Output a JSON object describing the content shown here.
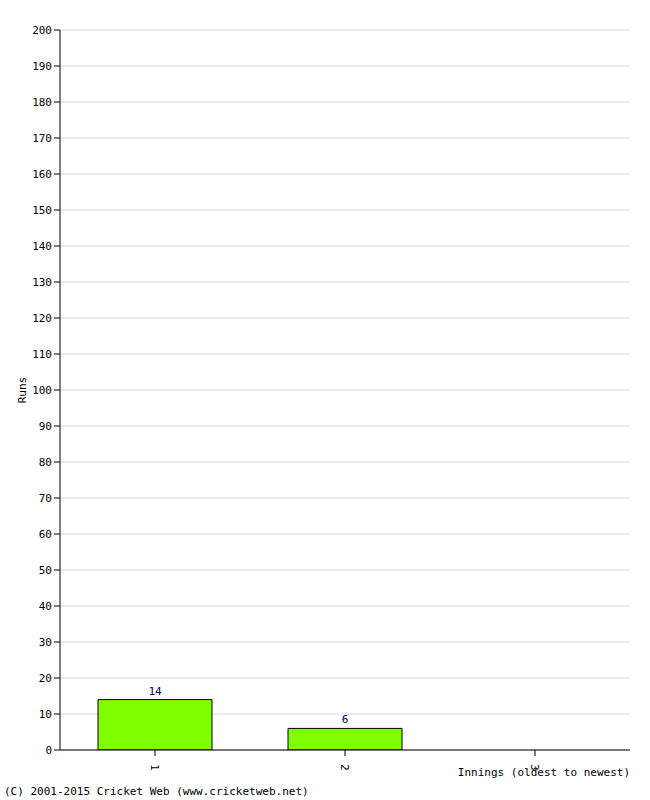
{
  "chart_data": {
    "type": "bar",
    "categories": [
      "1",
      "2",
      "3"
    ],
    "values": [
      14,
      6,
      0
    ],
    "color": "#80ff00",
    "ylim": [
      0,
      200
    ],
    "yticks": [
      0,
      10,
      20,
      30,
      40,
      50,
      60,
      70,
      80,
      90,
      100,
      110,
      120,
      130,
      140,
      150,
      160,
      170,
      180,
      190,
      200
    ],
    "grid": true,
    "data_labels": true,
    "y_label": "Runs",
    "x_label": "Innings (oldest to newest)",
    "annotation": "(C) 2001-2015 Cricket Web (www.cricketweb.net)"
  }
}
